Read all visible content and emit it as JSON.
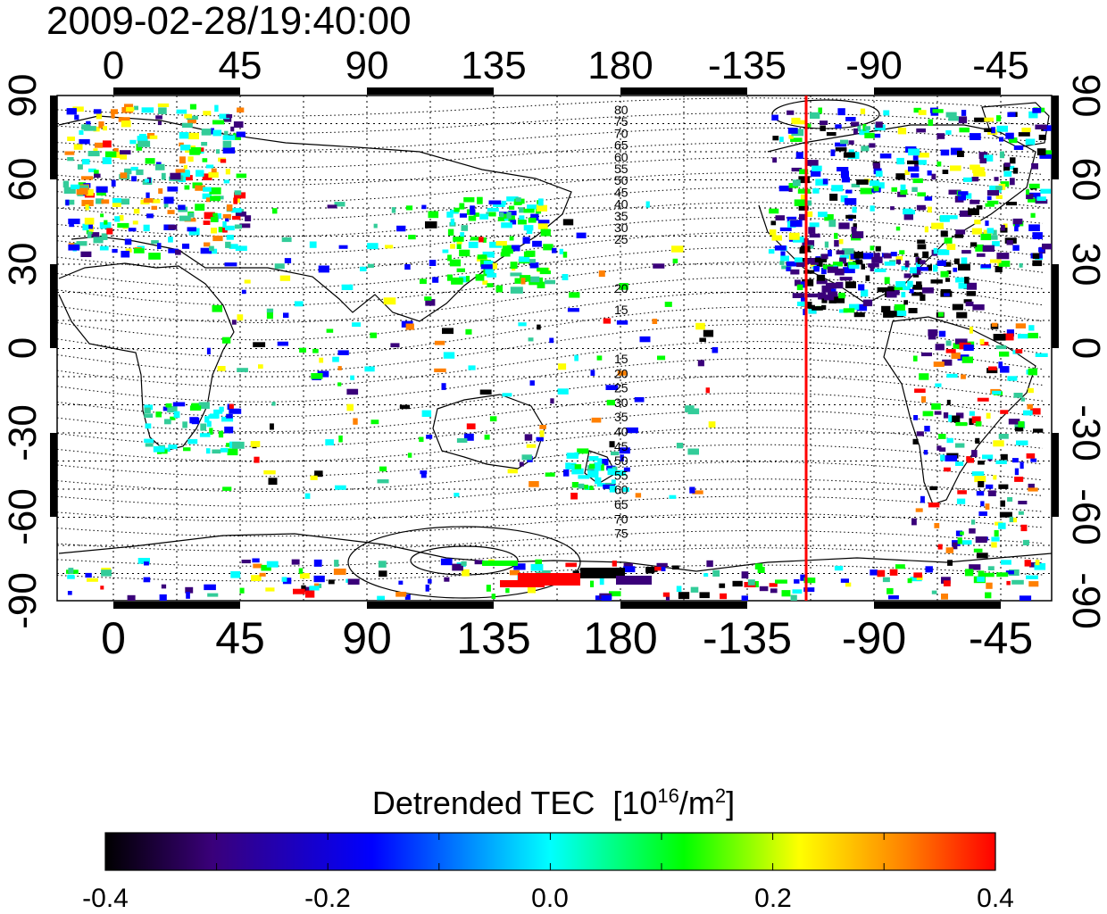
{
  "timestamp": "2009-02-28/19:40:00",
  "lon_ticks": [
    "0",
    "45",
    "90",
    "135",
    "180",
    "-135",
    "-90",
    "-45"
  ],
  "lat_ticks": [
    "90",
    "60",
    "30",
    "0",
    "-30",
    "-60",
    "-90"
  ],
  "contour_labels_north": [
    "80",
    "75",
    "70",
    "65",
    "60",
    "55",
    "50",
    "45",
    "40",
    "35",
    "30",
    "25",
    "20",
    "15"
  ],
  "contour_labels_south": [
    "15",
    "20",
    "25",
    "30",
    "35",
    "40",
    "45",
    "50",
    "55",
    "60",
    "65",
    "70",
    "75"
  ],
  "terminator_color": "#ff0000",
  "colorbar": {
    "title_text": "Detrended TEC",
    "unit_open": "[10",
    "unit_exp": "16",
    "unit_mid": "/m",
    "unit_exp2": "2",
    "unit_close": "]",
    "tick_labels": [
      "-0.4",
      "-0.2",
      "0.0",
      "0.2",
      "0.4"
    ],
    "colors": [
      "#000000",
      "#3a007a",
      "#0000ff",
      "#00ffff",
      "#00ff00",
      "#ffff00",
      "#ff0000"
    ]
  }
}
